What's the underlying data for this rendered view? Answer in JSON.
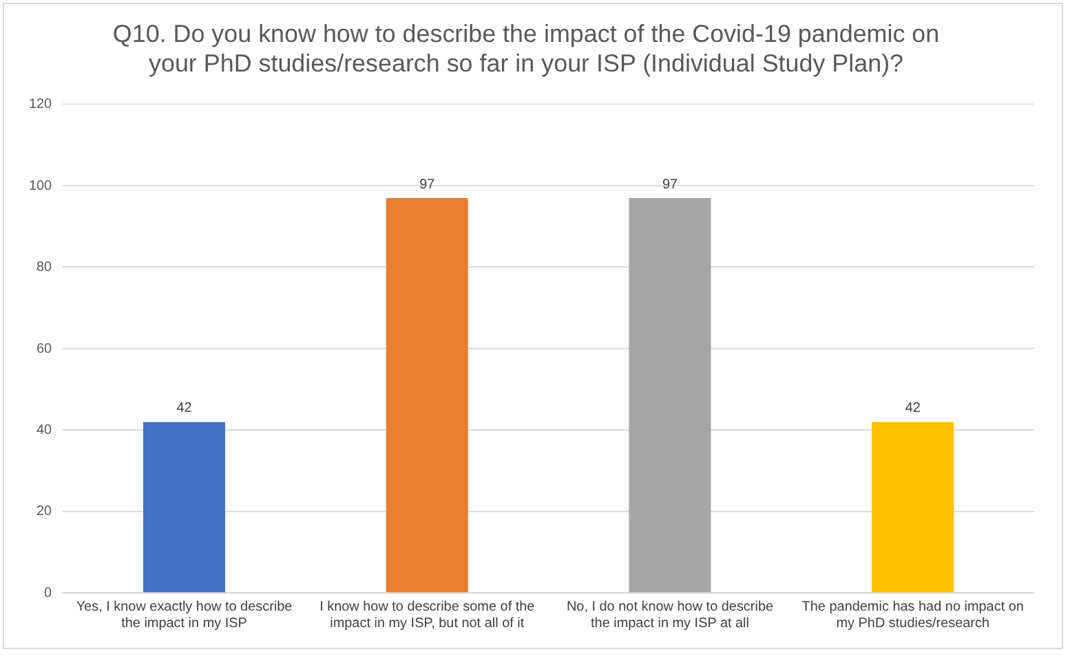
{
  "chart_data": {
    "type": "bar",
    "title": "Q10. Do you know how to describe the impact of the Covid-19 pandemic on your PhD studies/research so far in your ISP (Individual Study Plan)?",
    "categories": [
      "Yes, I know exactly how to describe the impact in my ISP",
      "I know how to describe some of the impact in my ISP, but not all of it",
      "No, I do not know how to describe the impact in my ISP at all",
      "The pandemic has had no impact on my PhD studies/research"
    ],
    "values": [
      42,
      97,
      97,
      42
    ],
    "colors": [
      "#4472c4",
      "#ed7d31",
      "#a5a5a5",
      "#ffc000"
    ],
    "ylim": [
      0,
      120
    ],
    "yticks": [
      0,
      20,
      40,
      60,
      80,
      100,
      120
    ],
    "grid": "y",
    "data_labels": true,
    "legend": false
  }
}
